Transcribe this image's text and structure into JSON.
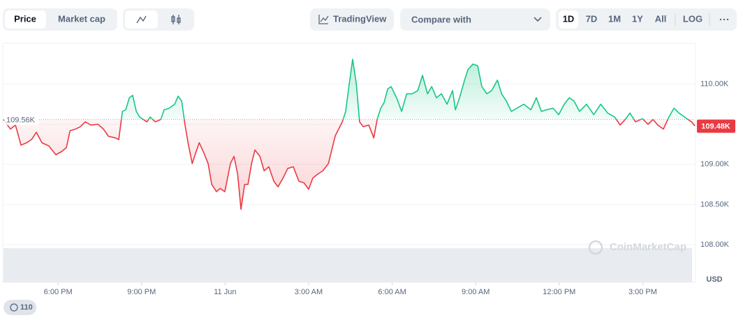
{
  "toolbar": {
    "tabs": [
      "Price",
      "Market cap"
    ],
    "tradingview": "TradingView",
    "compare": "Compare with",
    "ranges": [
      "1D",
      "7D",
      "1M",
      "1Y",
      "All"
    ],
    "log": "LOG"
  },
  "badge": "110",
  "chart_data": {
    "type": "line",
    "watermark": "CoinMarketCap",
    "ylabel": "USD",
    "up_color": "#16c784",
    "down_color": "#ea3943",
    "grid": true,
    "baseline": {
      "value": 109.56,
      "label": "109.56K"
    },
    "current": {
      "value": 109.48,
      "label": "109.48K"
    },
    "xlim": [
      16.04,
      40.87
    ],
    "ylim": [
      107.53,
      110.51
    ],
    "xticks": [
      {
        "value": 18,
        "label": "6:00 PM"
      },
      {
        "value": 21,
        "label": "9:00 PM"
      },
      {
        "value": 24,
        "label": "11 Jun"
      },
      {
        "value": 27,
        "label": "3:00 AM"
      },
      {
        "value": 30,
        "label": "6:00 AM"
      },
      {
        "value": 33,
        "label": "9:00 AM"
      },
      {
        "value": 36,
        "label": "12:00 PM"
      },
      {
        "value": 39,
        "label": "3:00 PM"
      }
    ],
    "yticks": [
      {
        "value": 108,
        "label": "108.00K"
      },
      {
        "value": 108.5,
        "label": "108.50K"
      },
      {
        "value": 109,
        "label": "109.00K"
      },
      {
        "value": 109.5,
        "label": "109.50K"
      },
      {
        "value": 110,
        "label": "110.00K"
      }
    ],
    "x": [
      16.04,
      16.29,
      16.47,
      16.67,
      16.87,
      17.05,
      17.22,
      17.42,
      17.67,
      17.92,
      18.13,
      18.3,
      18.43,
      18.63,
      18.8,
      18.98,
      19.18,
      19.43,
      19.63,
      19.81,
      20.06,
      20.18,
      20.31,
      20.43,
      20.56,
      20.68,
      20.81,
      20.93,
      21.06,
      21.19,
      21.31,
      21.49,
      21.69,
      21.81,
      21.99,
      22.19,
      22.31,
      22.44,
      22.56,
      22.69,
      22.82,
      22.94,
      23.07,
      23.24,
      23.39,
      23.52,
      23.69,
      23.82,
      23.99,
      24.19,
      24.32,
      24.45,
      24.57,
      24.7,
      24.82,
      24.95,
      25.07,
      25.25,
      25.4,
      25.57,
      25.75,
      25.9,
      26.08,
      26.25,
      26.45,
      26.65,
      26.83,
      27.0,
      27.15,
      27.33,
      27.51,
      27.71,
      27.83,
      27.96,
      28.21,
      28.33,
      28.46,
      28.58,
      28.71,
      28.83,
      28.96,
      29.16,
      29.34,
      29.46,
      29.59,
      29.71,
      29.84,
      29.96,
      30.16,
      30.34,
      30.52,
      30.72,
      30.92,
      31.09,
      31.27,
      31.42,
      31.59,
      31.77,
      31.97,
      32.17,
      32.27,
      32.42,
      32.6,
      32.72,
      32.9,
      33.07,
      33.22,
      33.4,
      33.57,
      33.78,
      33.93,
      34.1,
      34.28,
      34.48,
      34.73,
      34.98,
      35.18,
      35.36,
      35.53,
      35.78,
      35.98,
      36.18,
      36.36,
      36.53,
      36.73,
      36.98,
      37.24,
      37.49,
      37.74,
      37.99,
      38.19,
      38.37,
      38.54,
      38.74,
      38.99,
      39.19,
      39.37,
      39.54,
      39.74,
      39.94,
      40.12,
      40.3,
      40.5,
      40.75,
      40.87
    ],
    "values": [
      109.56,
      109.44,
      109.49,
      109.24,
      109.27,
      109.31,
      109.4,
      109.27,
      109.23,
      109.12,
      109.16,
      109.21,
      109.42,
      109.44,
      109.47,
      109.53,
      109.49,
      109.5,
      109.44,
      109.35,
      109.33,
      109.31,
      109.66,
      109.68,
      109.83,
      109.86,
      109.66,
      109.59,
      109.56,
      109.53,
      109.59,
      109.53,
      109.56,
      109.68,
      109.7,
      109.75,
      109.85,
      109.79,
      109.49,
      109.23,
      109.01,
      109.14,
      109.27,
      109.14,
      109.01,
      108.75,
      108.66,
      108.7,
      108.66,
      109.01,
      109.1,
      108.88,
      108.44,
      108.75,
      108.75,
      109.01,
      109.18,
      109.1,
      108.92,
      108.97,
      108.79,
      108.72,
      108.83,
      108.95,
      108.97,
      108.79,
      108.77,
      108.69,
      108.83,
      108.88,
      108.92,
      109.01,
      109.18,
      109.36,
      109.53,
      109.66,
      110.01,
      110.31,
      110.01,
      109.53,
      109.47,
      109.49,
      109.33,
      109.56,
      109.7,
      109.77,
      109.94,
      109.97,
      109.83,
      109.66,
      109.88,
      109.88,
      109.92,
      110.11,
      109.88,
      109.97,
      109.83,
      109.88,
      109.75,
      109.92,
      109.68,
      109.83,
      110.05,
      110.18,
      110.25,
      110.23,
      109.97,
      109.88,
      109.92,
      110.05,
      109.88,
      109.79,
      109.66,
      109.7,
      109.75,
      109.68,
      109.83,
      109.66,
      109.68,
      109.7,
      109.62,
      109.75,
      109.83,
      109.79,
      109.66,
      109.75,
      109.62,
      109.75,
      109.64,
      109.59,
      109.49,
      109.56,
      109.64,
      109.53,
      109.57,
      109.5,
      109.56,
      109.49,
      109.44,
      109.59,
      109.7,
      109.64,
      109.59,
      109.53,
      109.48
    ]
  }
}
